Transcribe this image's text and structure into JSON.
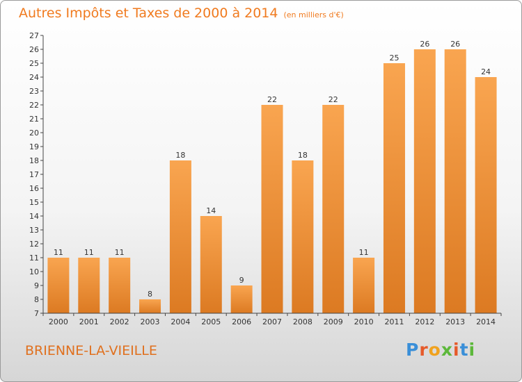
{
  "header": {
    "title": "Autres Impôts et Taxes de 2000 à 2014",
    "unit": "(en milliers d'€)"
  },
  "footer": {
    "commune": "BRIENNE-LA-VIEILLE",
    "brand": "Proxiti"
  },
  "colors": {
    "accent": "#f07a1e",
    "bar_light": "#f9a550",
    "bar_dark": "#dc7a22",
    "brand_letters": [
      "#3a8fd8",
      "#e65a2a",
      "#f0a21e",
      "#5cb83a",
      "#e65a2a",
      "#3a8fd8",
      "#5cb83a"
    ]
  },
  "chart_data": {
    "type": "bar",
    "title": "Autres Impôts et Taxes de 2000 à 2014",
    "subtitle": "(en milliers d'€)",
    "xlabel": "",
    "ylabel": "",
    "categories": [
      "2000",
      "2001",
      "2002",
      "2003",
      "2004",
      "2005",
      "2006",
      "2007",
      "2008",
      "2009",
      "2010",
      "2011",
      "2012",
      "2013",
      "2014"
    ],
    "values": [
      11,
      11,
      11,
      8,
      18,
      14,
      9,
      22,
      18,
      22,
      11,
      25,
      26,
      26,
      24
    ],
    "ylim": [
      7,
      27
    ],
    "yticks": [
      7,
      8,
      9,
      10,
      11,
      12,
      13,
      14,
      15,
      16,
      17,
      18,
      19,
      20,
      21,
      22,
      23,
      24,
      25,
      26,
      27
    ],
    "grid": false,
    "legend": "none"
  }
}
